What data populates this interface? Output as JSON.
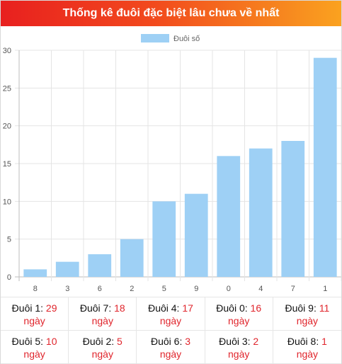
{
  "title": "Thống kê đuôi đặc biệt lâu chưa về nhất",
  "chart_data": {
    "type": "bar",
    "legend": "Đuôi số",
    "legend_position": "top-center",
    "categories": [
      "8",
      "3",
      "6",
      "2",
      "5",
      "9",
      "0",
      "4",
      "7",
      "1"
    ],
    "values": [
      1,
      2,
      3,
      5,
      10,
      11,
      16,
      17,
      18,
      29
    ],
    "ylim": [
      0,
      30
    ],
    "yticks": [
      "0",
      "5",
      "10",
      "15",
      "20",
      "25",
      "30"
    ],
    "grid": true,
    "bar_color": "#9ed0f5"
  },
  "stats": [
    {
      "label": "Đuôi 1:",
      "value": "29",
      "unit": "ngày"
    },
    {
      "label": "Đuôi 7:",
      "value": "18",
      "unit": "ngày"
    },
    {
      "label": "Đuôi 4:",
      "value": "17",
      "unit": "ngày"
    },
    {
      "label": "Đuôi 0:",
      "value": "16",
      "unit": "ngày"
    },
    {
      "label": "Đuôi 9:",
      "value": "11",
      "unit": "ngày"
    },
    {
      "label": "Đuôi 5:",
      "value": "10",
      "unit": "ngày"
    },
    {
      "label": "Đuôi 2:",
      "value": "5",
      "unit": "ngày"
    },
    {
      "label": "Đuôi 6:",
      "value": "3",
      "unit": "ngày"
    },
    {
      "label": "Đuôi 3:",
      "value": "2",
      "unit": "ngày"
    },
    {
      "label": "Đuôi 8:",
      "value": "1",
      "unit": "ngày"
    }
  ]
}
